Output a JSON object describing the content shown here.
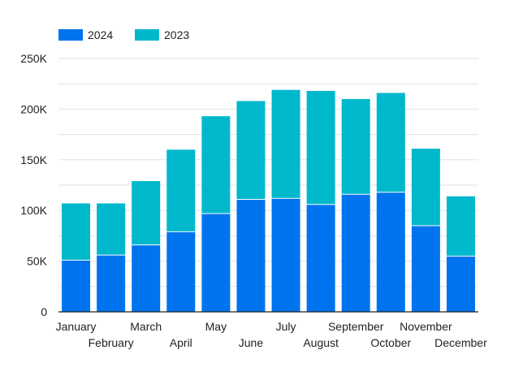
{
  "chart_data": {
    "type": "bar",
    "stacked": true,
    "categories": [
      "January",
      "February",
      "March",
      "April",
      "May",
      "June",
      "July",
      "August",
      "September",
      "October",
      "November",
      "December"
    ],
    "series": [
      {
        "name": "2024",
        "color": "#0073ee",
        "values": [
          51000,
          56000,
          66000,
          79000,
          97000,
          111000,
          112000,
          106000,
          116000,
          118000,
          85000,
          55000
        ]
      },
      {
        "name": "2023",
        "color": "#00b8cc",
        "values": [
          56000,
          51000,
          63000,
          81000,
          96000,
          97000,
          107000,
          112000,
          94000,
          98000,
          76000,
          59000
        ]
      }
    ],
    "y_ticks": [
      {
        "value": 0,
        "label": "0"
      },
      {
        "value": 50000,
        "label": "50K"
      },
      {
        "value": 100000,
        "label": "100K"
      },
      {
        "value": 150000,
        "label": "150K"
      },
      {
        "value": 200000,
        "label": "200K"
      },
      {
        "value": 250000,
        "label": "250K"
      }
    ],
    "ylim": [
      0,
      250000
    ],
    "grid": true,
    "legend_position": "top-left"
  }
}
